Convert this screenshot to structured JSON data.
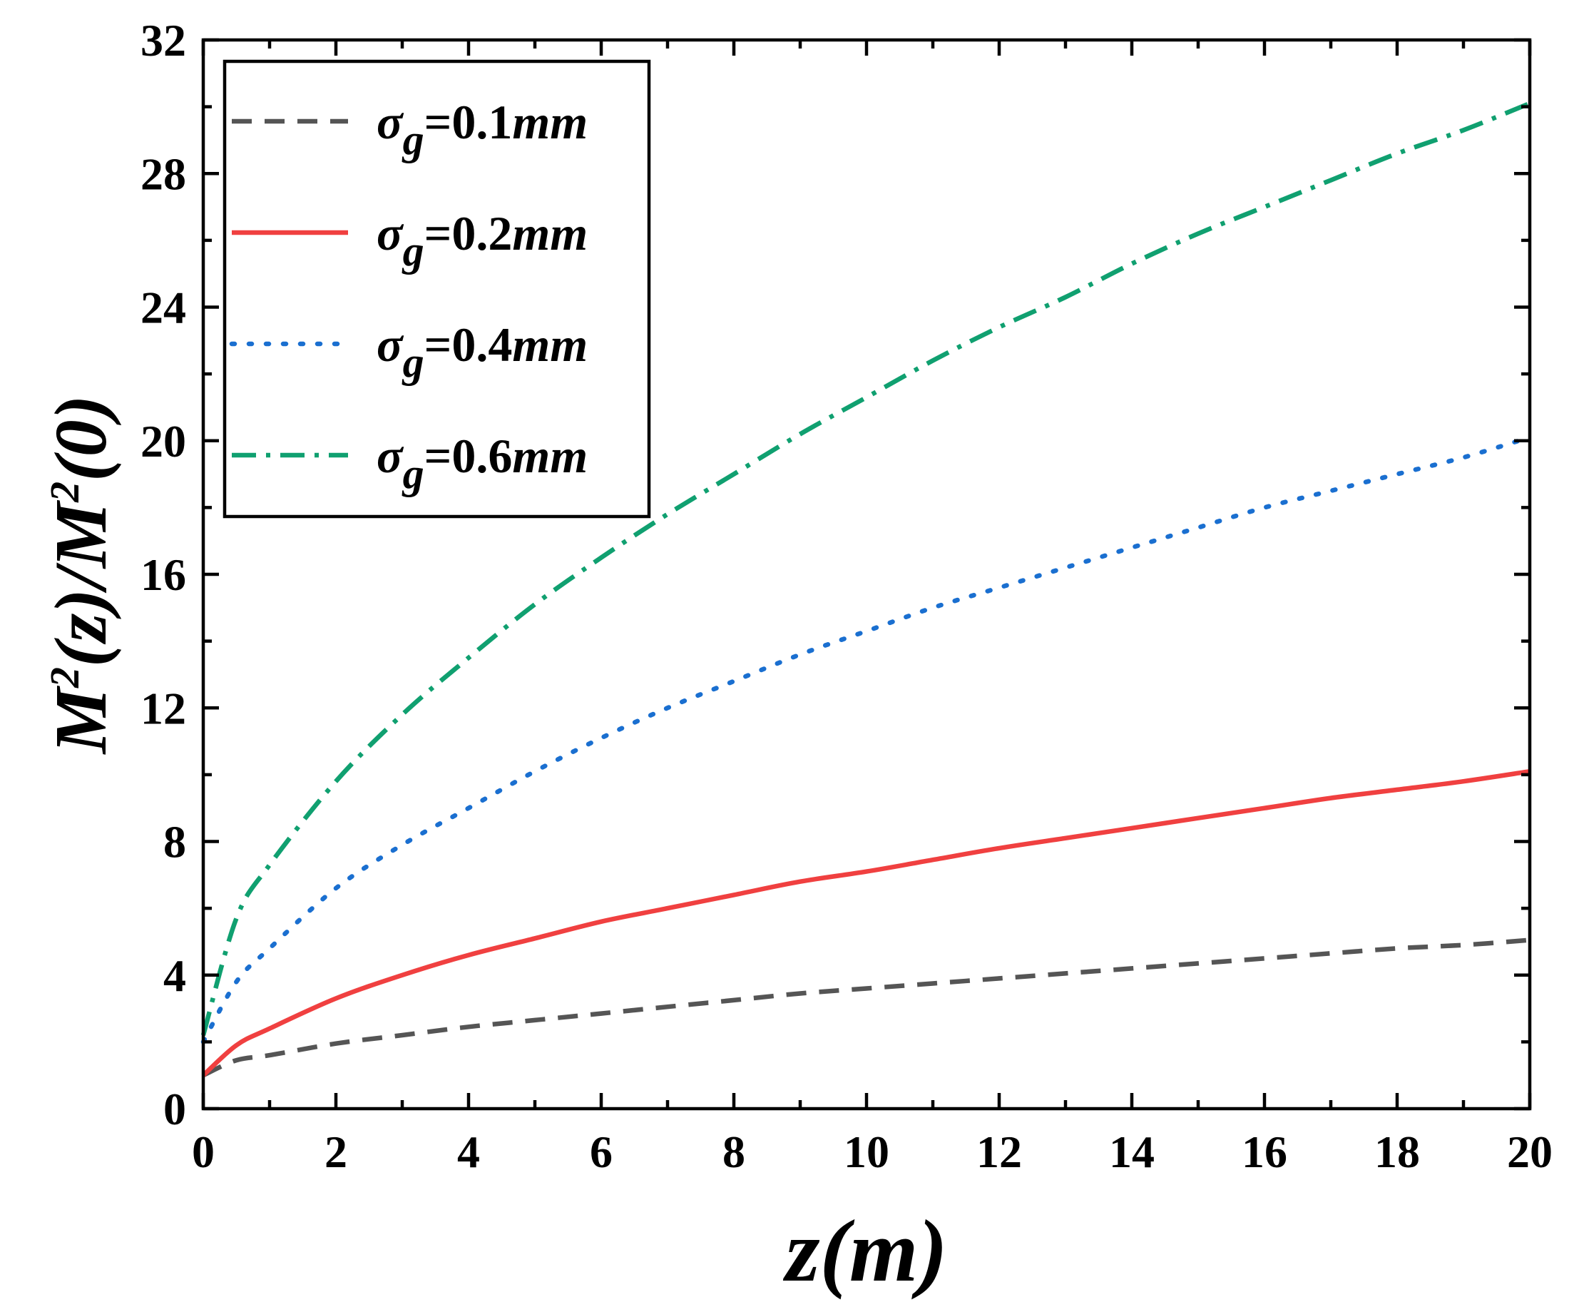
{
  "chart_data": {
    "type": "line",
    "title": "",
    "xlabel": "z(m)",
    "ylabel_parts": {
      "a": "M",
      "sup1": "2",
      "b": "(z)/M",
      "sup2": "2",
      "c": "(0)"
    },
    "xlim": [
      0,
      20
    ],
    "ylim": [
      0,
      32
    ],
    "xticks": [
      0,
      2,
      4,
      6,
      8,
      10,
      12,
      14,
      16,
      18,
      20
    ],
    "yticks": [
      0,
      4,
      8,
      12,
      16,
      20,
      24,
      28,
      32
    ],
    "grid": false,
    "legend_position": "top-left",
    "x": [
      0,
      0.5,
      1,
      2,
      3,
      4,
      5,
      6,
      7,
      8,
      9,
      10,
      11,
      12,
      13,
      14,
      15,
      16,
      17,
      18,
      19,
      20
    ],
    "series": [
      {
        "name": "σg=0.1mm",
        "legend": {
          "sym": "σ",
          "sub": "g",
          "val": "=0.1",
          "unit": "mm"
        },
        "color": "#555555",
        "style": "dashed",
        "values": [
          1.0,
          1.45,
          1.6,
          1.95,
          2.2,
          2.45,
          2.65,
          2.85,
          3.05,
          3.25,
          3.45,
          3.6,
          3.75,
          3.9,
          4.05,
          4.2,
          4.35,
          4.5,
          4.65,
          4.8,
          4.9,
          5.05
        ]
      },
      {
        "name": "σg=0.2mm",
        "legend": {
          "sym": "σ",
          "sub": "g",
          "val": "=0.2",
          "unit": "mm"
        },
        "color": "#f04040",
        "style": "solid",
        "values": [
          1.0,
          1.9,
          2.4,
          3.3,
          4.0,
          4.6,
          5.1,
          5.6,
          6.0,
          6.4,
          6.8,
          7.1,
          7.45,
          7.8,
          8.1,
          8.4,
          8.7,
          9.0,
          9.3,
          9.55,
          9.8,
          10.1
        ]
      },
      {
        "name": "σg=0.4mm",
        "legend": {
          "sym": "σ",
          "sub": "g",
          "val": "=0.4",
          "unit": "mm"
        },
        "color": "#1a6fd0",
        "style": "dotted",
        "values": [
          2.0,
          3.8,
          4.8,
          6.6,
          7.9,
          9.0,
          10.1,
          11.1,
          12.0,
          12.8,
          13.6,
          14.3,
          15.0,
          15.6,
          16.2,
          16.8,
          17.4,
          18.0,
          18.5,
          19.0,
          19.5,
          20.1
        ]
      },
      {
        "name": "σg=0.6mm",
        "legend": {
          "sym": "σ",
          "sub": "g",
          "val": "=0.6",
          "unit": "mm"
        },
        "color": "#10a070",
        "style": "dashdot",
        "values": [
          2.2,
          5.7,
          7.3,
          9.8,
          11.8,
          13.5,
          15.1,
          16.5,
          17.8,
          19.0,
          20.2,
          21.3,
          22.4,
          23.4,
          24.3,
          25.3,
          26.2,
          27.0,
          27.8,
          28.6,
          29.3,
          30.1
        ]
      }
    ]
  }
}
